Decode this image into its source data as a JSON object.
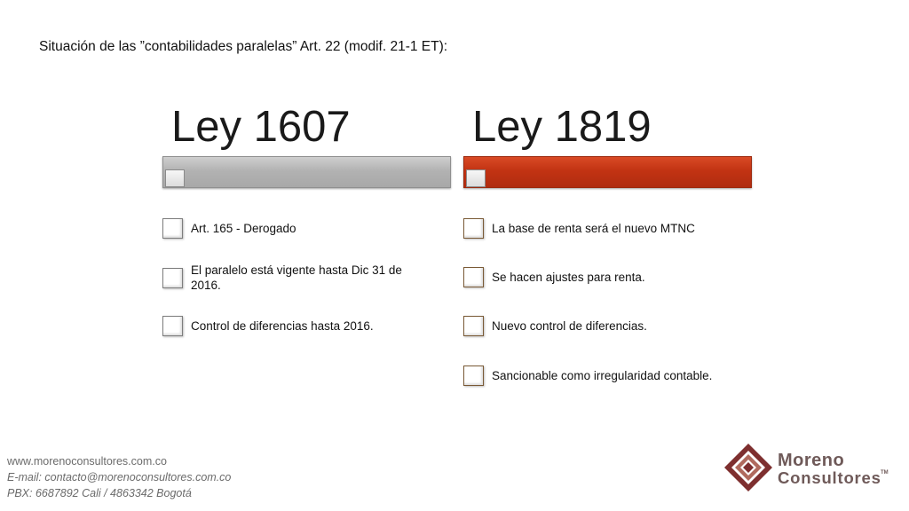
{
  "slide": {
    "title": "Situación de las ”contabilidades paralelas” Art. 22 (modif. 21-1 ET):"
  },
  "columns": [
    {
      "heading": "Ley 1607",
      "bar_color": "#b5b5b5",
      "items": [
        "Art. 165 - Derogado",
        "El paralelo está vigente hasta Dic 31 de 2016.",
        "Control de diferencias hasta 2016."
      ]
    },
    {
      "heading": "Ley 1819",
      "bar_color": "#c23313",
      "items": [
        "La base de renta será el nuevo MTNC",
        "Se hacen ajustes para renta.",
        "Nuevo control de diferencias.",
        "Sancionable como irregularidad contable."
      ]
    }
  ],
  "footer": {
    "website": "www.morenoconsultores.com.co",
    "email": "E-mail: contacto@morenoconsultores.com.co",
    "phone": "PBX: 6687892 Cali / 4863342 Bogotá"
  },
  "logo": {
    "line1": "Moreno",
    "line2": "Consultores",
    "trademark": "TM",
    "colors": {
      "outer": "#7e2f2f",
      "inner": "#b06a5e",
      "text": "#6f5a59"
    }
  }
}
